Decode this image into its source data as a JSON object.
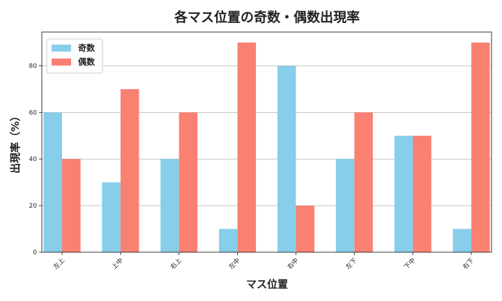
{
  "chart_data": {
    "type": "bar",
    "title": "各マス位置の奇数・偶数出現率",
    "xlabel": "マス位置",
    "ylabel": "出現率（%）",
    "categories": [
      "左上",
      "上中",
      "右上",
      "左中",
      "右中",
      "左下",
      "下中",
      "右下"
    ],
    "series": [
      {
        "name": "奇数",
        "color": "#87CEEB",
        "values": [
          60,
          30,
          40,
          10,
          80,
          40,
          50,
          10
        ]
      },
      {
        "name": "偶数",
        "color": "#FA8072",
        "values": [
          40,
          70,
          60,
          90,
          20,
          60,
          50,
          90
        ]
      }
    ],
    "ylim": [
      0,
      94.5
    ],
    "yticks": [
      0,
      20,
      40,
      60,
      80
    ],
    "grid": true,
    "legend": "top-left"
  }
}
